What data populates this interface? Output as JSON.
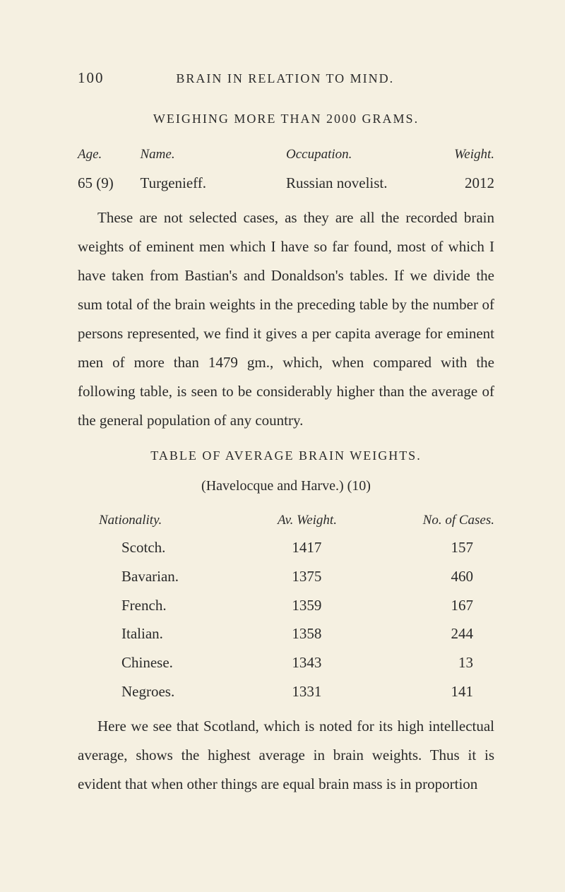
{
  "header": {
    "page_number": "100",
    "running_head": "BRAIN IN RELATION TO MIND."
  },
  "section1": {
    "title": "WEIGHING MORE THAN 2000 GRAMS.",
    "labels": {
      "age": "Age.",
      "name": "Name.",
      "occupation": "Occupation.",
      "weight": "Weight."
    },
    "entry": {
      "age": "65 (9)",
      "name": "Turgenieff.",
      "occupation": "Russian novelist.",
      "weight": "2012"
    }
  },
  "paragraph1": "These are not selected cases, as they are all the recorded brain weights of eminent men which I have so far found, most of which I have taken from Bastian's and Donaldson's tables. If we divide the sum total of the brain weights in the preceding table by the number of persons represented, we find it gives a per capita average for eminent men of more than 1479 gm., which, when compared with the following table, is seen to be considerably higher than the average of the general population of any country.",
  "table": {
    "title": "TABLE OF AVERAGE BRAIN WEIGHTS.",
    "subtitle": "(Havelocque and Harve.) (10)",
    "labels": {
      "nationality": "Nationality.",
      "avg_weight": "Av. Weight.",
      "cases": "No. of Cases."
    },
    "rows": [
      {
        "nationality": "Scotch.",
        "avg_weight": "1417",
        "cases": "157"
      },
      {
        "nationality": "Bavarian.",
        "avg_weight": "1375",
        "cases": "460"
      },
      {
        "nationality": "French.",
        "avg_weight": "1359",
        "cases": "167"
      },
      {
        "nationality": "Italian.",
        "avg_weight": "1358",
        "cases": "244"
      },
      {
        "nationality": "Chinese.",
        "avg_weight": "1343",
        "cases": "13"
      },
      {
        "nationality": "Negroes.",
        "avg_weight": "1331",
        "cases": "141"
      }
    ]
  },
  "paragraph2": "Here we see that Scotland, which is noted for its high intellectual average, shows the highest average in brain weights. Thus it is evident that when other things are equal brain mass is in proportion"
}
